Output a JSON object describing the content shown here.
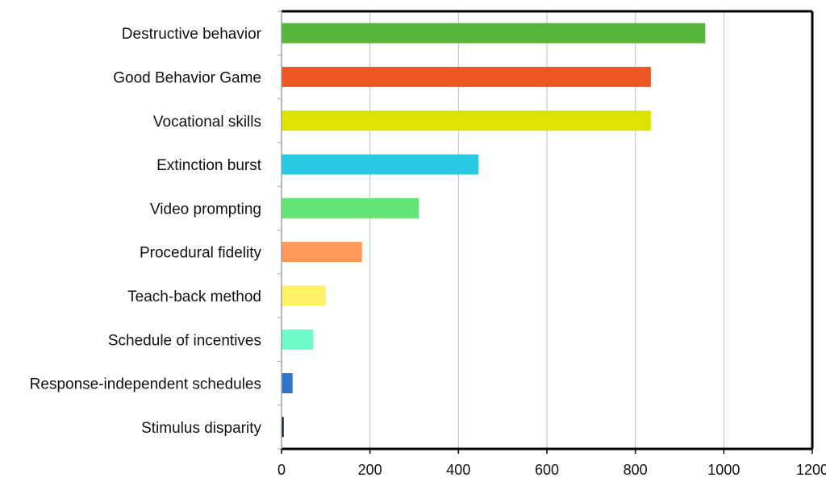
{
  "chart_data": {
    "type": "bar",
    "orientation": "horizontal",
    "title": "",
    "xlabel": "",
    "ylabel": "",
    "categories": [
      "Destructive behavior",
      "Good Behavior Game",
      "Vocational skills",
      "Extinction burst",
      "Video prompting",
      "Procedural fidelity",
      "Teach-back method",
      "Schedule of incentives",
      "Response-independent schedules",
      "Stimulus disparity"
    ],
    "values": [
      958,
      835,
      835,
      445,
      310,
      182,
      100,
      72,
      25,
      5
    ],
    "colors": [
      "#55b63a",
      "#ef5722",
      "#dde200",
      "#28c9e3",
      "#64e475",
      "#ff995a",
      "#fff066",
      "#6efbc8",
      "#2f74c8",
      "#0d1b2b"
    ],
    "xlim": [
      0,
      1200
    ],
    "x_ticks": [
      "0",
      "200",
      "400",
      "600",
      "800",
      "1000",
      "1200"
    ],
    "grid": "vertical",
    "legend": "none"
  }
}
